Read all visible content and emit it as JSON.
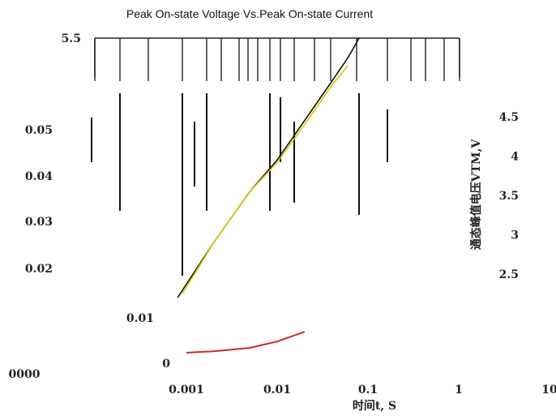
{
  "chart_data": {
    "type": "line",
    "title": "Peak On-state Voltage Vs.Peak On-state Current",
    "xlabel": "时间t, S",
    "ylabel": "通态峰值电压VTM,V",
    "x_scale": "log",
    "xlim": [
      0.001,
      10
    ],
    "x_ticks": [
      "0.001",
      "0.01",
      "0.1",
      "1",
      "10"
    ],
    "left_ticks": [
      "0.05",
      "0.04",
      "0.03",
      "0.02",
      "0.01",
      "0"
    ],
    "left_zero_alt": "0000",
    "right_ticks": [
      "5.5",
      "4.5",
      "4",
      "3.5",
      "3",
      "2.5"
    ],
    "ylim_right": [
      2.5,
      5.5
    ],
    "ylim_left": [
      0,
      0.05
    ],
    "grid": "vertical",
    "series": [
      {
        "axis": "right",
        "color": "#111111",
        "x": [
          0.0008,
          0.002,
          0.005,
          0.01,
          0.02,
          0.04,
          0.06,
          0.08
        ],
        "y": [
          2.2,
          2.9,
          3.55,
          3.95,
          4.45,
          4.95,
          5.25,
          5.5
        ]
      },
      {
        "axis": "right",
        "color": "#d9c600",
        "x": [
          0.0009,
          0.002,
          0.005,
          0.01,
          0.02,
          0.04,
          0.06
        ],
        "y": [
          2.25,
          2.9,
          3.55,
          3.92,
          4.4,
          4.9,
          5.15
        ]
      },
      {
        "axis": "left",
        "color": "#cc2a2a",
        "x": [
          0.001,
          0.002,
          0.005,
          0.01,
          0.02
        ],
        "y": [
          0.0025,
          0.0028,
          0.0035,
          0.0048,
          0.0068
        ]
      }
    ]
  }
}
